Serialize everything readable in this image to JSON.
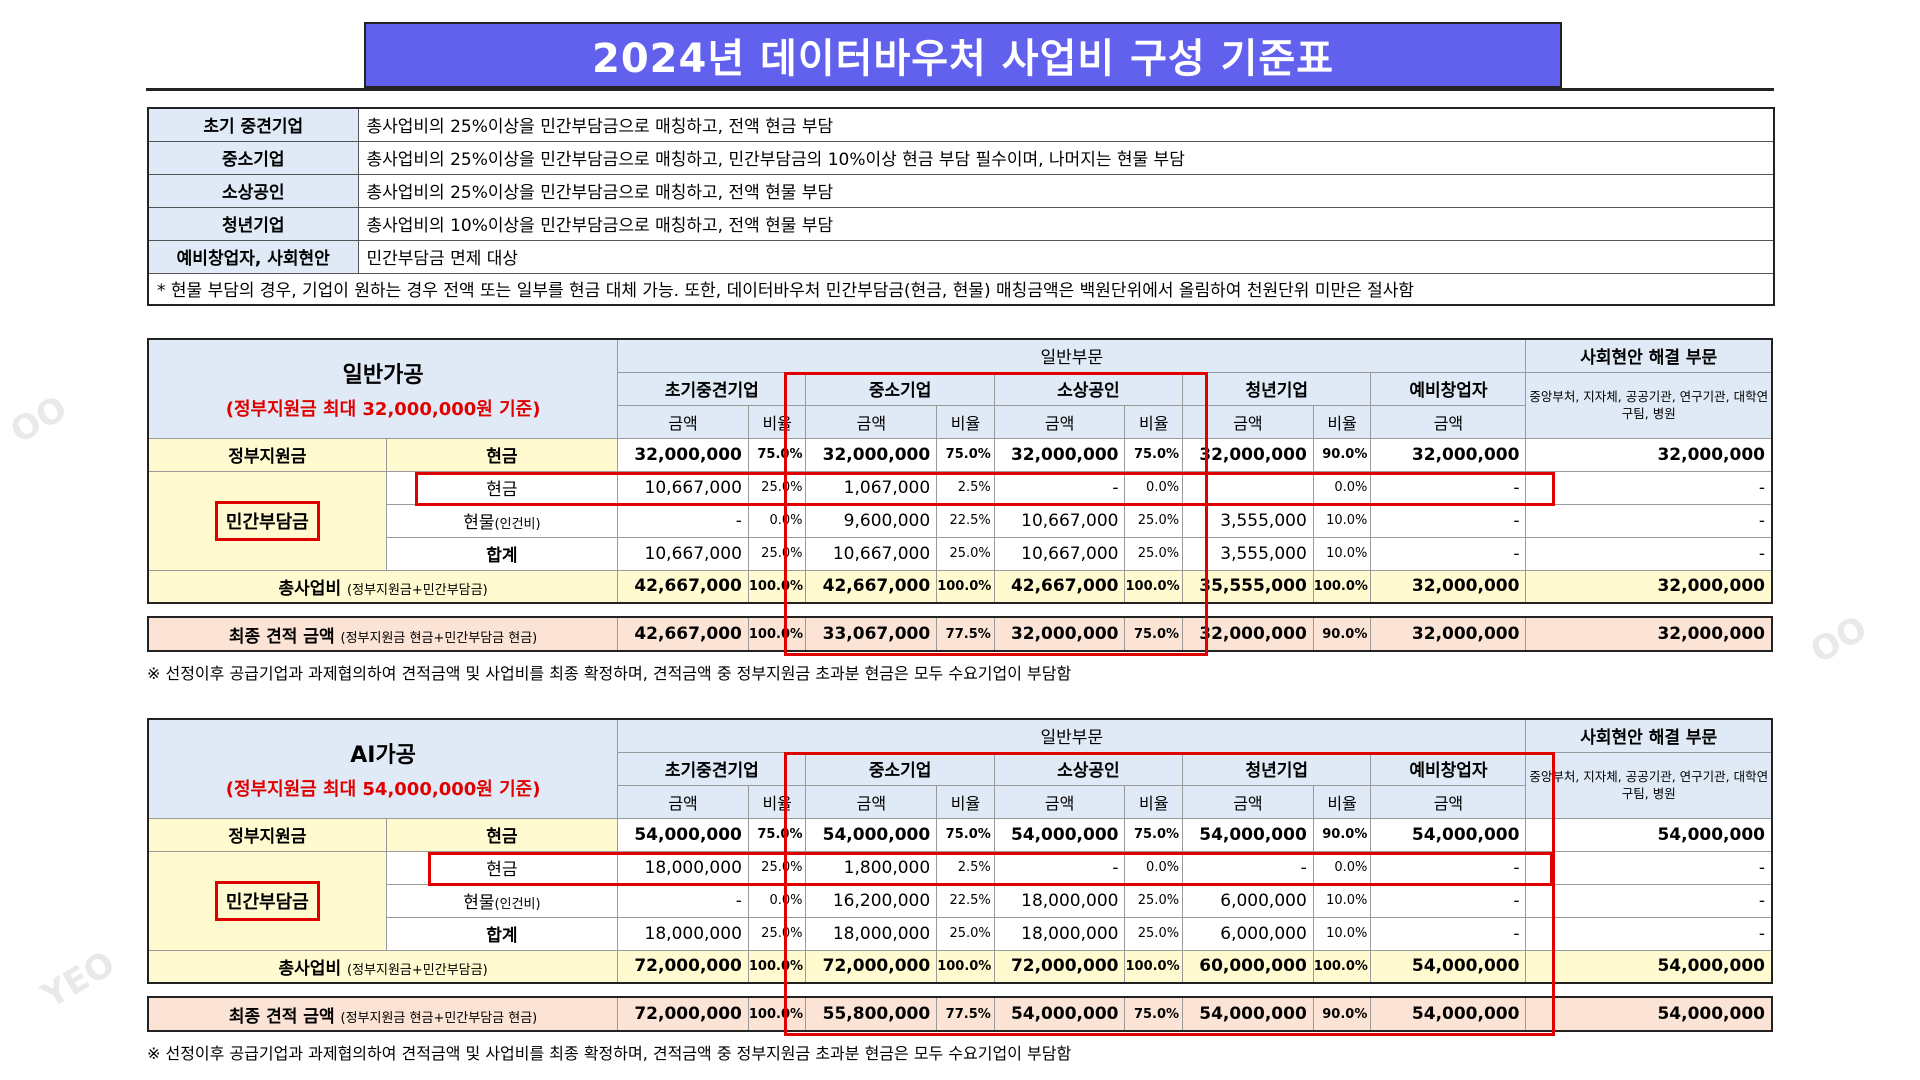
{
  "title": "2024년 데이터바우처 사업비 구성 기준표",
  "criteria": [
    {
      "type": "초기 중견기업",
      "desc": "총사업비의 25%이상을 민간부담금으로 매칭하고, 전액 현금 부담"
    },
    {
      "type": "중소기업",
      "desc": "총사업비의 25%이상을 민간부담금으로 매칭하고, 민간부담금의 10%이상 현금 부담 필수이며, 나머지는 현물 부담"
    },
    {
      "type": "소상공인",
      "desc": "총사업비의 25%이상을 민간부담금으로 매칭하고, 전액 현물 부담"
    },
    {
      "type": "청년기업",
      "desc": "총사업비의 10%이상을 민간부담금으로 매칭하고, 전액 현물 부담"
    },
    {
      "type": "예비창업자, 사회현안",
      "desc": "민간부담금 면제 대상"
    }
  ],
  "criteria_note": "* 현물 부담의 경우, 기업이 원하는 경우 전액 또는 일부를 현금 대체 가능. 또한, 데이터바우처 민간부담금(현금, 현물) 매칭금액은 백원단위에서 올림하여 천원단위 미만은 절사함",
  "headers": {
    "general": "일반부문",
    "social": "사회현안 해결 부문",
    "social_sub": "중앙부처, 지자체, 공공기관, 연구기관, 대학연구팀, 병원",
    "groups": [
      "초기중견기업",
      "중소기업",
      "소상공인",
      "청년기업",
      "예비창업자"
    ],
    "amount": "금액",
    "ratio": "비율",
    "gov": "정부지원금",
    "private": "민간부담금",
    "cash": "현금",
    "inkind": "현물",
    "inkind_note": "(인건비)",
    "sum": "합계",
    "total": "총사업비",
    "total_note": "(정부지원금+민간부담금)",
    "final": "최종 견적 금액",
    "final_note": "(정부지원금 현금+민간부담금 현금)"
  },
  "tables": [
    {
      "name": "일반가공",
      "sub": "(정부지원금 최대 32,000,000원 기준)",
      "gov": [
        "32,000,000",
        "75.0%",
        "32,000,000",
        "75.0%",
        "32,000,000",
        "75.0%",
        "32,000,000",
        "90.0%",
        "32,000,000",
        "32,000,000"
      ],
      "cash": [
        "10,667,000",
        "25.0%",
        "1,067,000",
        "2.5%",
        "-",
        "0.0%",
        "",
        "0.0%",
        "-",
        "-"
      ],
      "inkind": [
        "-",
        "0.0%",
        "9,600,000",
        "22.5%",
        "10,667,000",
        "25.0%",
        "3,555,000",
        "10.0%",
        "-",
        "-"
      ],
      "sum": [
        "10,667,000",
        "25.0%",
        "10,667,000",
        "25.0%",
        "10,667,000",
        "25.0%",
        "3,555,000",
        "10.0%",
        "-",
        "-"
      ],
      "total": [
        "42,667,000",
        "100.0%",
        "42,667,000",
        "100.0%",
        "42,667,000",
        "100.0%",
        "35,555,000",
        "100.0%",
        "32,000,000",
        "32,000,000"
      ],
      "final": [
        "42,667,000",
        "100.0%",
        "33,067,000",
        "77.5%",
        "32,000,000",
        "75.0%",
        "32,000,000",
        "90.0%",
        "32,000,000",
        "32,000,000"
      ]
    },
    {
      "name": "AI가공",
      "sub": "(정부지원금 최대 54,000,000원 기준)",
      "gov": [
        "54,000,000",
        "75.0%",
        "54,000,000",
        "75.0%",
        "54,000,000",
        "75.0%",
        "54,000,000",
        "90.0%",
        "54,000,000",
        "54,000,000"
      ],
      "cash": [
        "18,000,000",
        "25.0%",
        "1,800,000",
        "2.5%",
        "-",
        "0.0%",
        "-",
        "0.0%",
        "-",
        "-"
      ],
      "inkind": [
        "-",
        "0.0%",
        "16,200,000",
        "22.5%",
        "18,000,000",
        "25.0%",
        "6,000,000",
        "10.0%",
        "-",
        "-"
      ],
      "sum": [
        "18,000,000",
        "25.0%",
        "18,000,000",
        "25.0%",
        "18,000,000",
        "25.0%",
        "6,000,000",
        "10.0%",
        "-",
        "-"
      ],
      "total": [
        "72,000,000",
        "100.0%",
        "72,000,000",
        "100.0%",
        "72,000,000",
        "100.0%",
        "60,000,000",
        "100.0%",
        "54,000,000",
        "54,000,000"
      ],
      "final": [
        "72,000,000",
        "100.0%",
        "55,800,000",
        "77.5%",
        "54,000,000",
        "75.0%",
        "54,000,000",
        "90.0%",
        "54,000,000",
        "54,000,000"
      ]
    }
  ],
  "footnote": "※ 선정이후 공급기업과 과제협의하여 견적금액 및 사업비를 최종 확정하며, 견적금액 중 정부지원금 초과분 현금은 모두 수요기업이 부담함",
  "colors": {
    "title_bg": "#6161ee",
    "header_bg": "#dfeaf6",
    "yellow_bg": "#fffacf",
    "final_bg": "#fbe4d5",
    "highlight": "#e00000"
  }
}
